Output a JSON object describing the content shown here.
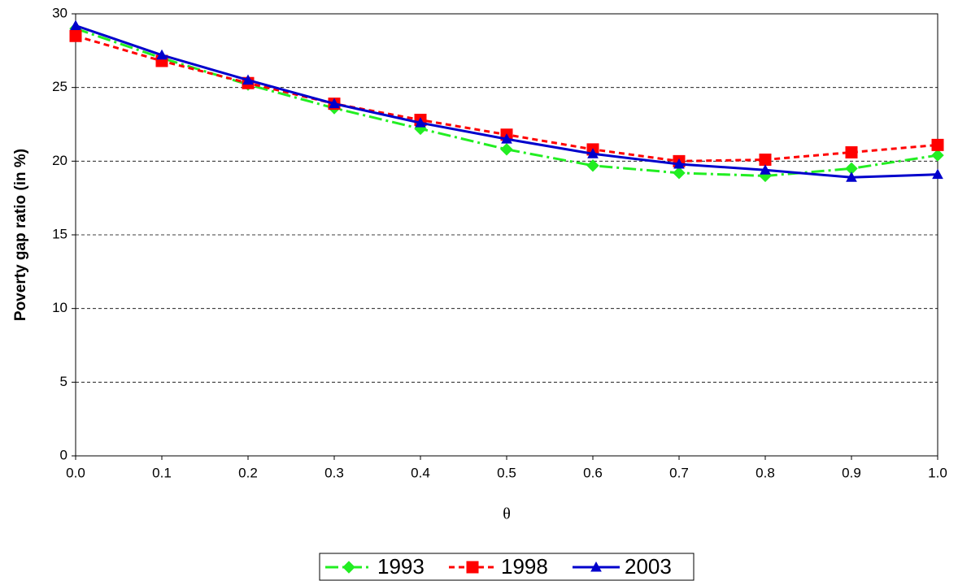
{
  "chart_data": {
    "type": "line",
    "x_label": "θ",
    "y_label": "Poverty gap ratio (in %)",
    "x": [
      0,
      0.1,
      0.2,
      0.3,
      0.4,
      0.5,
      0.6,
      0.7,
      0.8,
      0.9,
      1
    ],
    "series": [
      {
        "name": "1993",
        "color": "#22ee22",
        "marker": "diamond",
        "dash": "dashdot",
        "values": [
          29.0,
          27.0,
          25.2,
          23.6,
          22.2,
          20.8,
          19.7,
          19.2,
          19.0,
          19.5,
          20.4
        ]
      },
      {
        "name": "1998",
        "color": "#ff0000",
        "marker": "square",
        "dash": "dashed",
        "values": [
          28.5,
          26.8,
          25.3,
          23.9,
          22.8,
          21.8,
          20.8,
          20.0,
          20.1,
          20.6,
          21.1
        ]
      },
      {
        "name": "2003",
        "color": "#0000cc",
        "marker": "triangle",
        "dash": "solid",
        "values": [
          29.2,
          27.2,
          25.5,
          23.9,
          22.6,
          21.5,
          20.5,
          19.8,
          19.4,
          18.9,
          19.1
        ]
      }
    ],
    "xlim": [
      0,
      1
    ],
    "xticks": [
      {
        "value": 0,
        "label": "0.0"
      },
      0.1,
      0.2,
      0.3,
      0.4,
      0.5,
      0.6,
      0.7,
      0.8,
      0.9,
      {
        "value": 1,
        "label": "1.0"
      }
    ],
    "ylim": [
      0,
      30
    ],
    "yticks": [
      0,
      5,
      10,
      15,
      20,
      25,
      30
    ],
    "grid": true,
    "legend": "bottom"
  }
}
